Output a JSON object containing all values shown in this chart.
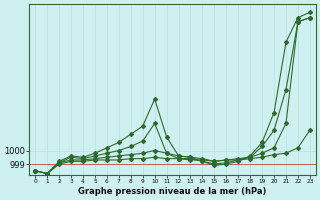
{
  "xlabel": "Graphe pression niveau de la mer (hPa)",
  "ylabel": "",
  "background_color": "#cff0f0",
  "grid_color": "#b8e0e0",
  "line_color": "#2d6a2d",
  "hline_color": "#cc4444",
  "hline_y": 999,
  "ylim": [
    998.2,
    1010.8
  ],
  "yticks": [
    999,
    1000
  ],
  "xlim": [
    -0.5,
    23.5
  ],
  "xticks": [
    0,
    1,
    2,
    3,
    4,
    5,
    6,
    7,
    8,
    9,
    10,
    11,
    12,
    13,
    14,
    15,
    16,
    17,
    18,
    19,
    20,
    21,
    22,
    23
  ],
  "series": [
    {
      "x": [
        0,
        1,
        2,
        3,
        4,
        5,
        6,
        7,
        8,
        9,
        10,
        11,
        12,
        13,
        14,
        15,
        16,
        17,
        18,
        19,
        20,
        21,
        22,
        23
      ],
      "y": [
        998.5,
        998.3,
        999.0,
        999.2,
        999.2,
        999.3,
        999.3,
        999.3,
        999.4,
        999.4,
        999.5,
        999.4,
        999.4,
        999.3,
        999.3,
        999.2,
        999.3,
        999.3,
        999.4,
        999.5,
        999.7,
        999.8,
        1000.2,
        1001.5
      ]
    },
    {
      "x": [
        0,
        1,
        2,
        3,
        4,
        5,
        6,
        7,
        8,
        9,
        10,
        11,
        12,
        13,
        14,
        15,
        16,
        17,
        18,
        19,
        20,
        21,
        22,
        23
      ],
      "y": [
        998.5,
        998.3,
        999.1,
        999.3,
        999.3,
        999.4,
        999.5,
        999.6,
        999.7,
        999.8,
        1000.0,
        999.8,
        999.6,
        999.5,
        999.4,
        999.2,
        999.3,
        999.4,
        999.5,
        999.8,
        1000.2,
        1002.0,
        1009.5,
        1009.8
      ]
    },
    {
      "x": [
        0,
        1,
        2,
        3,
        4,
        5,
        6,
        7,
        8,
        9,
        10,
        11,
        12,
        13,
        14,
        15,
        16,
        17,
        18,
        19,
        20,
        21,
        22,
        23
      ],
      "y": [
        998.5,
        998.3,
        999.1,
        999.5,
        999.4,
        999.6,
        999.8,
        1000.0,
        1000.3,
        1000.7,
        1002.0,
        999.8,
        999.4,
        999.4,
        999.2,
        999.0,
        999.1,
        999.3,
        999.5,
        1000.3,
        1001.5,
        1004.5,
        1009.5,
        1009.8
      ]
    },
    {
      "x": [
        0,
        1,
        2,
        3,
        4,
        5,
        6,
        7,
        8,
        9,
        10,
        11,
        12,
        13,
        14,
        15,
        16,
        17,
        18,
        19,
        20,
        21,
        22,
        23
      ],
      "y": [
        998.5,
        998.3,
        999.2,
        999.6,
        999.5,
        999.8,
        1000.2,
        1000.6,
        1001.2,
        1001.8,
        1003.8,
        1001.0,
        999.6,
        999.5,
        999.2,
        998.9,
        999.0,
        999.2,
        999.6,
        1000.6,
        1002.8,
        1008.0,
        1009.8,
        1010.2
      ]
    }
  ]
}
